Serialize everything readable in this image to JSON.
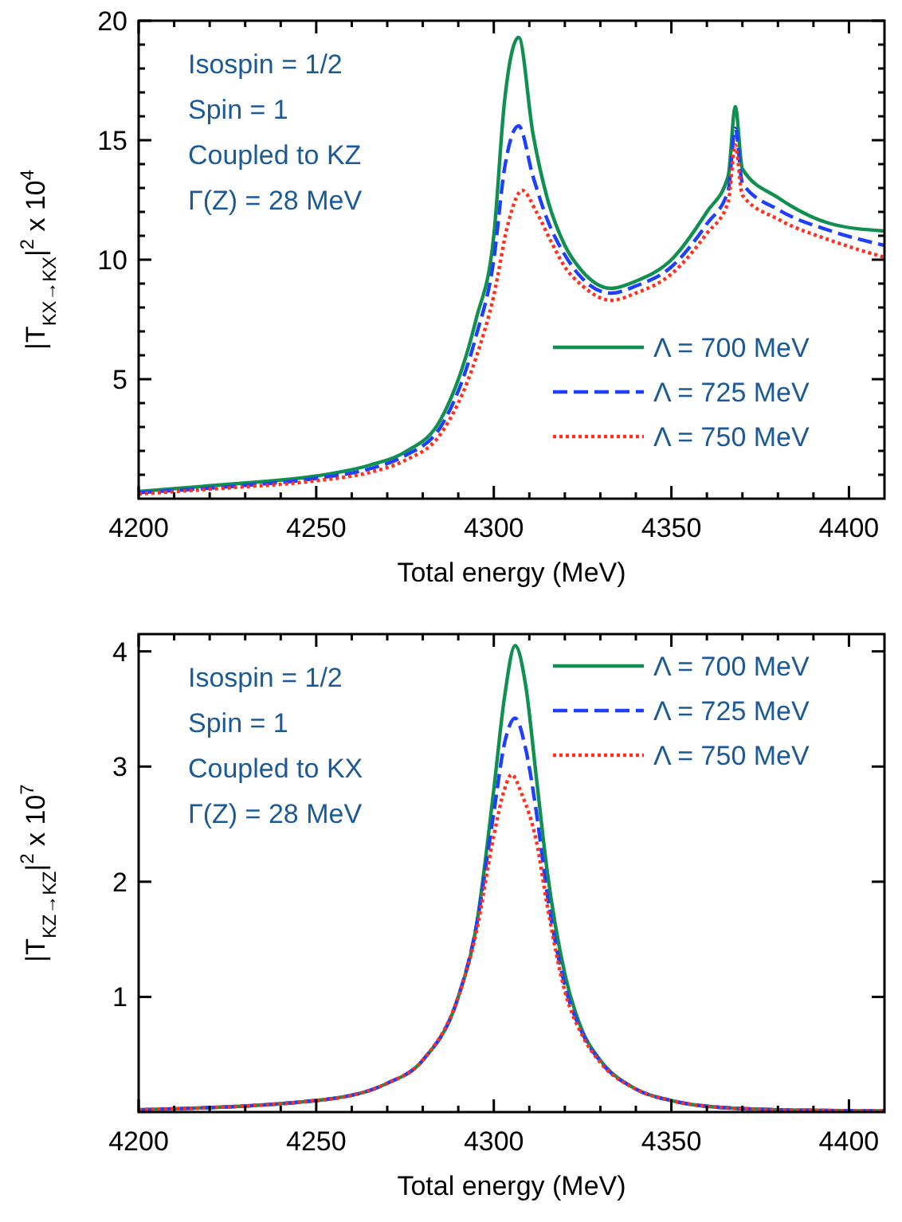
{
  "chart_data": [
    {
      "type": "line",
      "xlabel": "Total energy (MeV)",
      "ylabel": "|T$_{KX→KX}$|$^{2}$ x 10$^{4}$",
      "annotations": [
        "Isospin = 1/2",
        "Spin = 1",
        "Coupled to KZ",
        "Γ(Z) = 28 MeV"
      ],
      "legend": "bottom right",
      "grid": false,
      "xlim": [
        4200,
        4410
      ],
      "xticks": [
        4200,
        {
          "value": 4210,
          "label": null
        },
        {
          "value": 4220,
          "label": null
        },
        {
          "value": 4230,
          "label": null
        },
        {
          "value": 4240,
          "label": null
        },
        4250,
        {
          "value": 4260,
          "label": null
        },
        {
          "value": 4270,
          "label": null
        },
        {
          "value": 4280,
          "label": null
        },
        {
          "value": 4290,
          "label": null
        },
        4300,
        {
          "value": 4310,
          "label": null
        },
        {
          "value": 4320,
          "label": null
        },
        {
          "value": 4330,
          "label": null
        },
        {
          "value": 4340,
          "label": null
        },
        4350,
        {
          "value": 4360,
          "label": null
        },
        {
          "value": 4370,
          "label": null
        },
        {
          "value": 4380,
          "label": null
        },
        {
          "value": 4390,
          "label": null
        },
        4400
      ],
      "ylim": [
        0,
        20
      ],
      "yticks": [
        {
          "value": 1,
          "label": null
        },
        {
          "value": 2,
          "label": null
        },
        {
          "value": 3,
          "label": null
        },
        {
          "value": 4,
          "label": null
        },
        5,
        {
          "value": 6,
          "label": null
        },
        {
          "value": 7,
          "label": null
        },
        {
          "value": 8,
          "label": null
        },
        {
          "value": 9,
          "label": null
        },
        10,
        {
          "value": 11,
          "label": null
        },
        {
          "value": 12,
          "label": null
        },
        {
          "value": 13,
          "label": null
        },
        {
          "value": 14,
          "label": null
        },
        15,
        {
          "value": 16,
          "label": null
        },
        {
          "value": 17,
          "label": null
        },
        {
          "value": 18,
          "label": null
        },
        {
          "value": 19,
          "label": null
        },
        20
      ],
      "series": [
        {
          "name": "Λ = 700 MeV",
          "color": "#109050",
          "line_style": "solid",
          "x": [
            4200,
            4225,
            4250,
            4265,
            4275,
            4285,
            4295,
            4300,
            4303,
            4307,
            4311,
            4315,
            4320,
            4325,
            4333,
            4340,
            4350,
            4360,
            4366,
            4368,
            4370,
            4380,
            4395,
            4410
          ],
          "values": [
            0.3,
            0.6,
            0.95,
            1.4,
            1.95,
            3.3,
            7.5,
            11,
            16.6,
            19.3,
            15.3,
            12.6,
            10.6,
            9.5,
            8.8,
            9.1,
            10,
            12,
            13.5,
            16.4,
            13.8,
            12.6,
            11.5,
            11.2
          ]
        },
        {
          "name": "Λ = 725 MeV",
          "color": "#1f3fff",
          "line_style": "dashed",
          "x": [
            4200,
            4225,
            4250,
            4265,
            4275,
            4285,
            4295,
            4300,
            4303,
            4307,
            4311,
            4315,
            4320,
            4325,
            4333,
            4340,
            4350,
            4360,
            4366,
            4368,
            4370,
            4380,
            4395,
            4410
          ],
          "values": [
            0.25,
            0.5,
            0.85,
            1.25,
            1.8,
            3.0,
            6.8,
            10,
            13.8,
            15.6,
            13.5,
            11.7,
            10.2,
            9.2,
            8.6,
            8.9,
            9.7,
            11.5,
            12.9,
            15.5,
            13.2,
            12.1,
            11.2,
            10.6
          ]
        },
        {
          "name": "Λ = 750 MeV",
          "color": "#ff3020",
          "line_style": "dotted",
          "x": [
            4200,
            4225,
            4250,
            4265,
            4275,
            4285,
            4295,
            4300,
            4304,
            4308,
            4312,
            4316,
            4320,
            4325,
            4333,
            4340,
            4350,
            4360,
            4366,
            4368,
            4370,
            4380,
            4395,
            4410
          ],
          "values": [
            0.2,
            0.45,
            0.75,
            1.1,
            1.6,
            2.7,
            5.9,
            8.5,
            11.5,
            12.9,
            12.0,
            10.8,
            9.7,
            8.9,
            8.3,
            8.6,
            9.4,
            11.1,
            12.4,
            14.8,
            12.7,
            11.7,
            10.8,
            10.1
          ]
        }
      ]
    },
    {
      "type": "line",
      "xlabel": "Total energy (MeV)",
      "ylabel": "|T$_{KZ→KZ}$|$^{2}$ x 10$^{7}$",
      "annotations": [
        "Isospin = 1/2",
        "Spin = 1",
        "Coupled to KX",
        "Γ(Z) = 28 MeV"
      ],
      "legend": "top right",
      "grid": false,
      "xlim": [
        4200,
        4410
      ],
      "xticks": [
        4200,
        {
          "value": 4210,
          "label": null
        },
        {
          "value": 4220,
          "label": null
        },
        {
          "value": 4230,
          "label": null
        },
        {
          "value": 4240,
          "label": null
        },
        4250,
        {
          "value": 4260,
          "label": null
        },
        {
          "value": 4270,
          "label": null
        },
        {
          "value": 4280,
          "label": null
        },
        {
          "value": 4290,
          "label": null
        },
        4300,
        {
          "value": 4310,
          "label": null
        },
        {
          "value": 4320,
          "label": null
        },
        {
          "value": 4330,
          "label": null
        },
        {
          "value": 4340,
          "label": null
        },
        4350,
        {
          "value": 4360,
          "label": null
        },
        {
          "value": 4370,
          "label": null
        },
        {
          "value": 4380,
          "label": null
        },
        {
          "value": 4390,
          "label": null
        },
        4400
      ],
      "ylim": [
        0,
        4.15
      ],
      "yticks": [
        1,
        2,
        3,
        4
      ],
      "series": [
        {
          "name": "Λ = 700 MeV",
          "color": "#109050",
          "line_style": "solid",
          "x": [
            4200,
            4250,
            4270,
            4280,
            4290,
            4295,
            4300,
            4303,
            4306,
            4309,
            4312,
            4315,
            4320,
            4325,
            4330,
            4340,
            4350,
            4360,
            4380,
            4410
          ],
          "values": [
            0.02,
            0.1,
            0.25,
            0.45,
            1.0,
            1.6,
            2.8,
            3.6,
            4.05,
            3.7,
            2.9,
            2.1,
            1.2,
            0.7,
            0.45,
            0.2,
            0.1,
            0.05,
            0.02,
            0.01
          ]
        },
        {
          "name": "Λ = 725 MeV",
          "color": "#1f3fff",
          "line_style": "dashed",
          "x": [
            4200,
            4250,
            4270,
            4280,
            4290,
            4295,
            4300,
            4303,
            4306,
            4309,
            4312,
            4315,
            4320,
            4325,
            4330,
            4340,
            4350,
            4360,
            4380,
            4410
          ],
          "values": [
            0.02,
            0.1,
            0.25,
            0.45,
            1.0,
            1.6,
            2.6,
            3.2,
            3.42,
            3.15,
            2.6,
            1.9,
            1.1,
            0.68,
            0.44,
            0.2,
            0.1,
            0.05,
            0.02,
            0.01
          ]
        },
        {
          "name": "Λ = 750 MeV",
          "color": "#ff3020",
          "line_style": "dotted",
          "x": [
            4200,
            4250,
            4270,
            4280,
            4290,
            4295,
            4300,
            4303,
            4305,
            4308,
            4312,
            4315,
            4320,
            4325,
            4330,
            4340,
            4350,
            4360,
            4380,
            4410
          ],
          "values": [
            0.02,
            0.1,
            0.25,
            0.45,
            1.0,
            1.55,
            2.4,
            2.8,
            2.93,
            2.75,
            2.35,
            1.8,
            1.05,
            0.66,
            0.43,
            0.2,
            0.1,
            0.05,
            0.02,
            0.01
          ]
        }
      ]
    }
  ]
}
